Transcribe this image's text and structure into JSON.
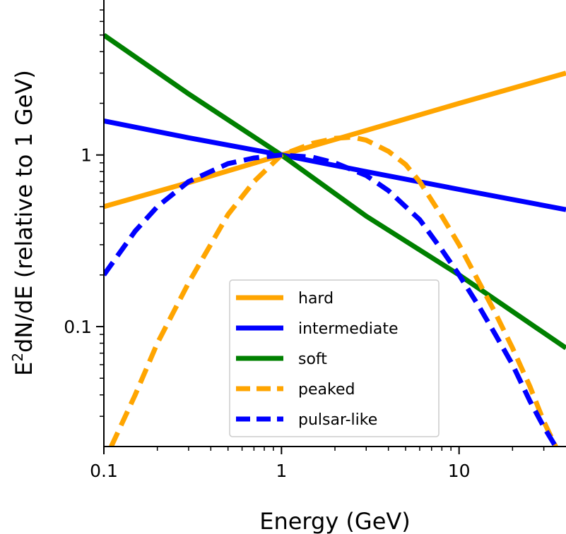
{
  "chart_data": {
    "type": "line",
    "title": "",
    "xlabel": "Energy (GeV)",
    "ylabel_main": "E",
    "ylabel_sup": "2",
    "ylabel_rest": "dN/dE (relative to 1 GeV)",
    "xscale": "log",
    "yscale": "log",
    "xlim": [
      0.1,
      40
    ],
    "ylim": [
      0.02,
      8
    ],
    "x_ticks": [
      {
        "value": 0.1,
        "label": "0.1"
      },
      {
        "value": 1,
        "label": "1"
      },
      {
        "value": 10,
        "label": "10"
      }
    ],
    "y_ticks": [
      {
        "value": 0.1,
        "label": "0.1"
      },
      {
        "value": 1,
        "label": "1"
      }
    ],
    "legend_position": "lower-center",
    "series": [
      {
        "name": "hard",
        "color": "#FFA500",
        "style": "solid",
        "x": [
          0.1,
          0.3,
          1,
          3,
          10,
          40
        ],
        "y": [
          0.5,
          0.69,
          1.0,
          1.39,
          2.0,
          3.0
        ]
      },
      {
        "name": "intermediate",
        "color": "#0000FF",
        "style": "solid",
        "x": [
          0.1,
          0.3,
          1,
          3,
          10,
          40
        ],
        "y": [
          1.58,
          1.26,
          1.0,
          0.8,
          0.63,
          0.48
        ]
      },
      {
        "name": "soft",
        "color": "#008000",
        "style": "solid",
        "x": [
          0.1,
          0.3,
          1,
          3,
          10,
          40
        ],
        "y": [
          5.0,
          2.27,
          1.0,
          0.44,
          0.2,
          0.075
        ]
      },
      {
        "name": "peaked",
        "color": "#FFA500",
        "style": "dashed",
        "x": [
          0.11,
          0.15,
          0.2,
          0.3,
          0.5,
          0.7,
          1,
          1.5,
          2,
          2.5,
          3,
          4,
          5,
          6,
          8,
          10,
          13,
          16,
          20,
          25,
          30,
          35,
          40
        ],
        "y": [
          0.02,
          0.04,
          0.08,
          0.18,
          0.45,
          0.7,
          1.0,
          1.17,
          1.25,
          1.27,
          1.22,
          1.05,
          0.88,
          0.7,
          0.44,
          0.3,
          0.18,
          0.12,
          0.075,
          0.045,
          0.028,
          0.02,
          0.015
        ]
      },
      {
        "name": "pulsar-like",
        "color": "#0000FF",
        "style": "dashed",
        "x": [
          0.1,
          0.15,
          0.2,
          0.3,
          0.5,
          0.7,
          1,
          1.5,
          2,
          3,
          4,
          5,
          6,
          8,
          10,
          13,
          16,
          20,
          25,
          30,
          35,
          40
        ],
        "y": [
          0.2,
          0.36,
          0.5,
          0.7,
          0.89,
          0.96,
          1.0,
          0.97,
          0.9,
          0.76,
          0.62,
          0.5,
          0.42,
          0.28,
          0.2,
          0.13,
          0.09,
          0.06,
          0.037,
          0.026,
          0.02,
          0.015
        ]
      }
    ]
  }
}
